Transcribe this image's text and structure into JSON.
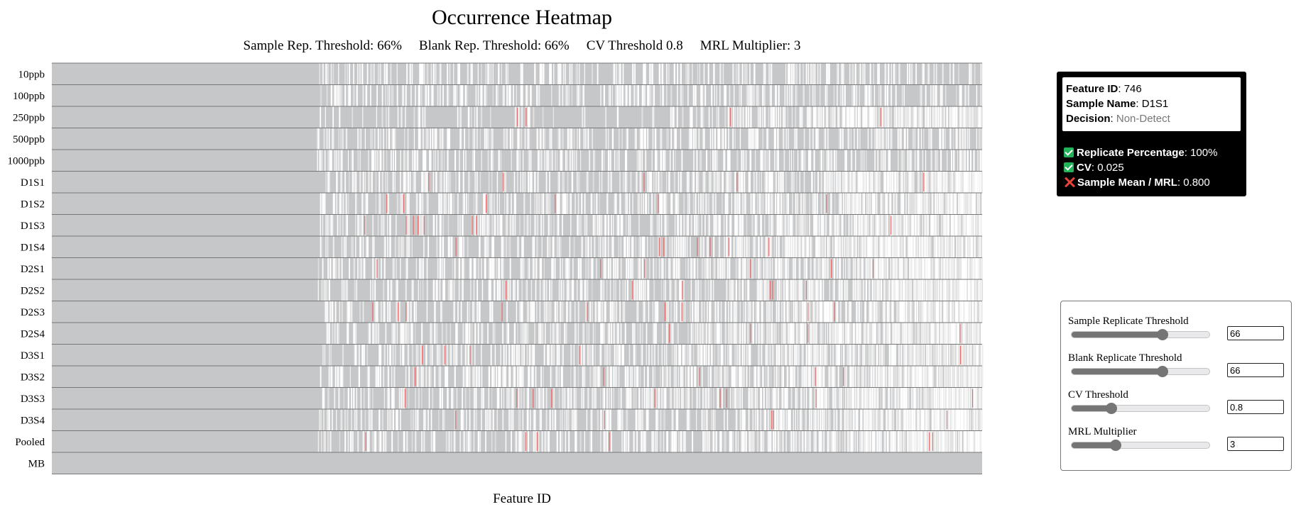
{
  "chart_data": {
    "type": "heatmap",
    "title": "Occurrence Heatmap",
    "subtitle": {
      "sample_rep": "Sample Rep. Threshold: 66%",
      "blank_rep": "Blank Rep. Threshold: 66%",
      "cv": "CV Threshold 0.8",
      "mrl": "MRL Multiplier: 3"
    },
    "xlabel": "Feature ID",
    "rows": [
      "10ppb",
      "100ppb",
      "250ppb",
      "500ppb",
      "1000ppb",
      "D1S1",
      "D1S2",
      "D1S3",
      "D1S4",
      "D2S1",
      "D2S2",
      "D2S3",
      "D2S4",
      "D3S1",
      "D3S2",
      "D3S3",
      "D3S4",
      "Pooled",
      "MB"
    ],
    "colors": {
      "non_detect": "#c6c7c9",
      "pass": "#ffffff",
      "fail": "#e06b6b",
      "row_border": "#777777"
    }
  },
  "tooltip": {
    "feature_id_label": "Feature ID",
    "feature_id": "746",
    "sample_name_label": "Sample Name",
    "sample_name": "D1S1",
    "decision_label": "Decision",
    "decision": "Non-Detect",
    "checks": [
      {
        "icon": "check-icon",
        "label": "Replicate Percentage",
        "value": "100%"
      },
      {
        "icon": "check-icon",
        "label": "CV",
        "value": "0.025"
      },
      {
        "icon": "x-icon",
        "label": "Sample Mean / MRL",
        "value": "0.800"
      }
    ]
  },
  "controls": {
    "sample_rep": {
      "label": "Sample Replicate Threshold",
      "value": "66",
      "fraction": 0.66
    },
    "blank_rep": {
      "label": "Blank Replicate Threshold",
      "value": "66",
      "fraction": 0.66
    },
    "cv": {
      "label": "CV Threshold",
      "value": "0.8",
      "fraction": 0.29
    },
    "mrl": {
      "label": "MRL Multiplier",
      "value": "3",
      "fraction": 0.32
    }
  }
}
